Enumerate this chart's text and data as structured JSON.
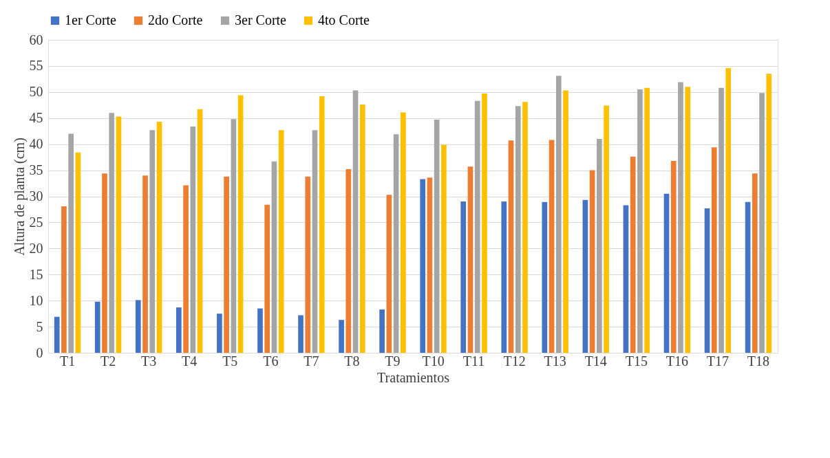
{
  "chart_data": {
    "type": "bar",
    "xlabel": "Tratamientos",
    "ylabel": "Altura de planta (cm)",
    "categories": [
      "T1",
      "T2",
      "T3",
      "T4",
      "T5",
      "T6",
      "T7",
      "T8",
      "T9",
      "T10",
      "T11",
      "T12",
      "T13",
      "T14",
      "T15",
      "T16",
      "T17",
      "T18"
    ],
    "series": [
      {
        "name": "1er Corte",
        "color": "#4472c4",
        "values": [
          6.9,
          9.8,
          10.1,
          8.7,
          7.5,
          8.5,
          7.2,
          6.3,
          8.3,
          33.3,
          29.0,
          29.0,
          28.9,
          29.3,
          28.3,
          30.5,
          27.7,
          28.9
        ]
      },
      {
        "name": "2do Corte",
        "color": "#ed7d31",
        "values": [
          28.1,
          34.4,
          34.0,
          32.1,
          33.8,
          28.4,
          33.8,
          35.2,
          30.3,
          33.6,
          35.7,
          40.7,
          40.8,
          35.0,
          37.6,
          36.8,
          39.4,
          34.4
        ]
      },
      {
        "name": "3er Corte",
        "color": "#a5a5a5",
        "values": [
          42.0,
          46.0,
          42.7,
          43.4,
          44.8,
          36.7,
          42.7,
          50.3,
          41.9,
          44.7,
          48.3,
          47.3,
          53.1,
          41.0,
          50.5,
          51.9,
          50.8,
          49.8
        ]
      },
      {
        "name": "4to Corte",
        "color": "#ffc000",
        "values": [
          38.4,
          45.3,
          44.3,
          46.7,
          49.4,
          42.7,
          49.2,
          47.6,
          46.1,
          39.9,
          49.7,
          48.1,
          50.3,
          47.4,
          50.8,
          51.0,
          54.6,
          53.5
        ]
      }
    ],
    "ylim": [
      0,
      60
    ],
    "yticks": [
      0,
      5,
      10,
      15,
      20,
      25,
      30,
      35,
      40,
      45,
      50,
      55,
      60
    ],
    "grid": "y",
    "legend": "top"
  }
}
